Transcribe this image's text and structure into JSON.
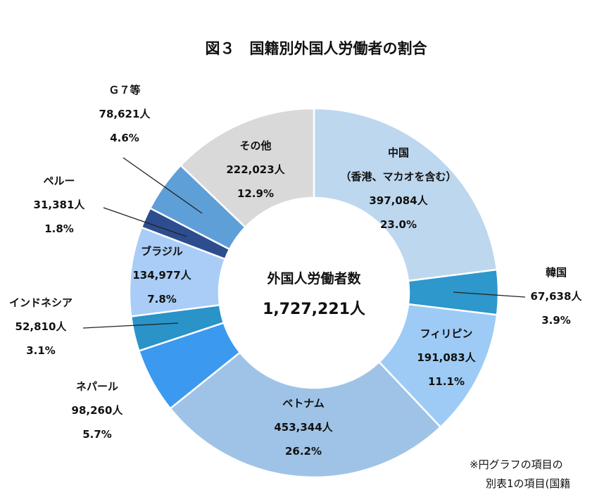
{
  "chart_data": {
    "type": "pie",
    "title": "図３　国籍別外国人労働者の割合",
    "center_label": "外国人労働者数",
    "center_total": "1,727,221人",
    "slices": [
      {
        "label_lines": [
          "中国",
          "（香港、マカオを含む）"
        ],
        "count": "397,084人",
        "percent": "23.0%",
        "value": 397084,
        "color": "#bdd7ee"
      },
      {
        "label_lines": [
          "韓国"
        ],
        "count": "67,638人",
        "percent": "3.9%",
        "value": 67638,
        "color": "#2e97cb"
      },
      {
        "label_lines": [
          "フィリピン"
        ],
        "count": "191,083人",
        "percent": "11.1%",
        "value": 191083,
        "color": "#9dcbf5"
      },
      {
        "label_lines": [
          "ベトナム"
        ],
        "count": "453,344人",
        "percent": "26.2%",
        "value": 453344,
        "color": "#9fc3e6"
      },
      {
        "label_lines": [
          "ネパール"
        ],
        "count": "98,260人",
        "percent": "5.7%",
        "value": 98260,
        "color": "#3b99f0"
      },
      {
        "label_lines": [
          "インドネシア"
        ],
        "count": "52,810人",
        "percent": "3.1%",
        "value": 52810,
        "color": "#2a93c8"
      },
      {
        "label_lines": [
          "ブラジル"
        ],
        "count": "134,977人",
        "percent": "7.8%",
        "value": 134977,
        "color": "#a9cdf6"
      },
      {
        "label_lines": [
          "ペルー"
        ],
        "count": "31,381人",
        "percent": "1.8%",
        "value": 31381,
        "color": "#2d4d8f"
      },
      {
        "label_lines": [
          "Ｇ７等"
        ],
        "count": "78,621人",
        "percent": "4.6%",
        "value": 78621,
        "color": "#5f9fd8"
      },
      {
        "label_lines": [
          "その他"
        ],
        "count": "222,023人",
        "percent": "12.9%",
        "value": 222023,
        "color": "#d9d9d9"
      }
    ]
  },
  "footnote_lines": [
    "※円グラフの項目の",
    "別表1の項目(国籍"
  ]
}
